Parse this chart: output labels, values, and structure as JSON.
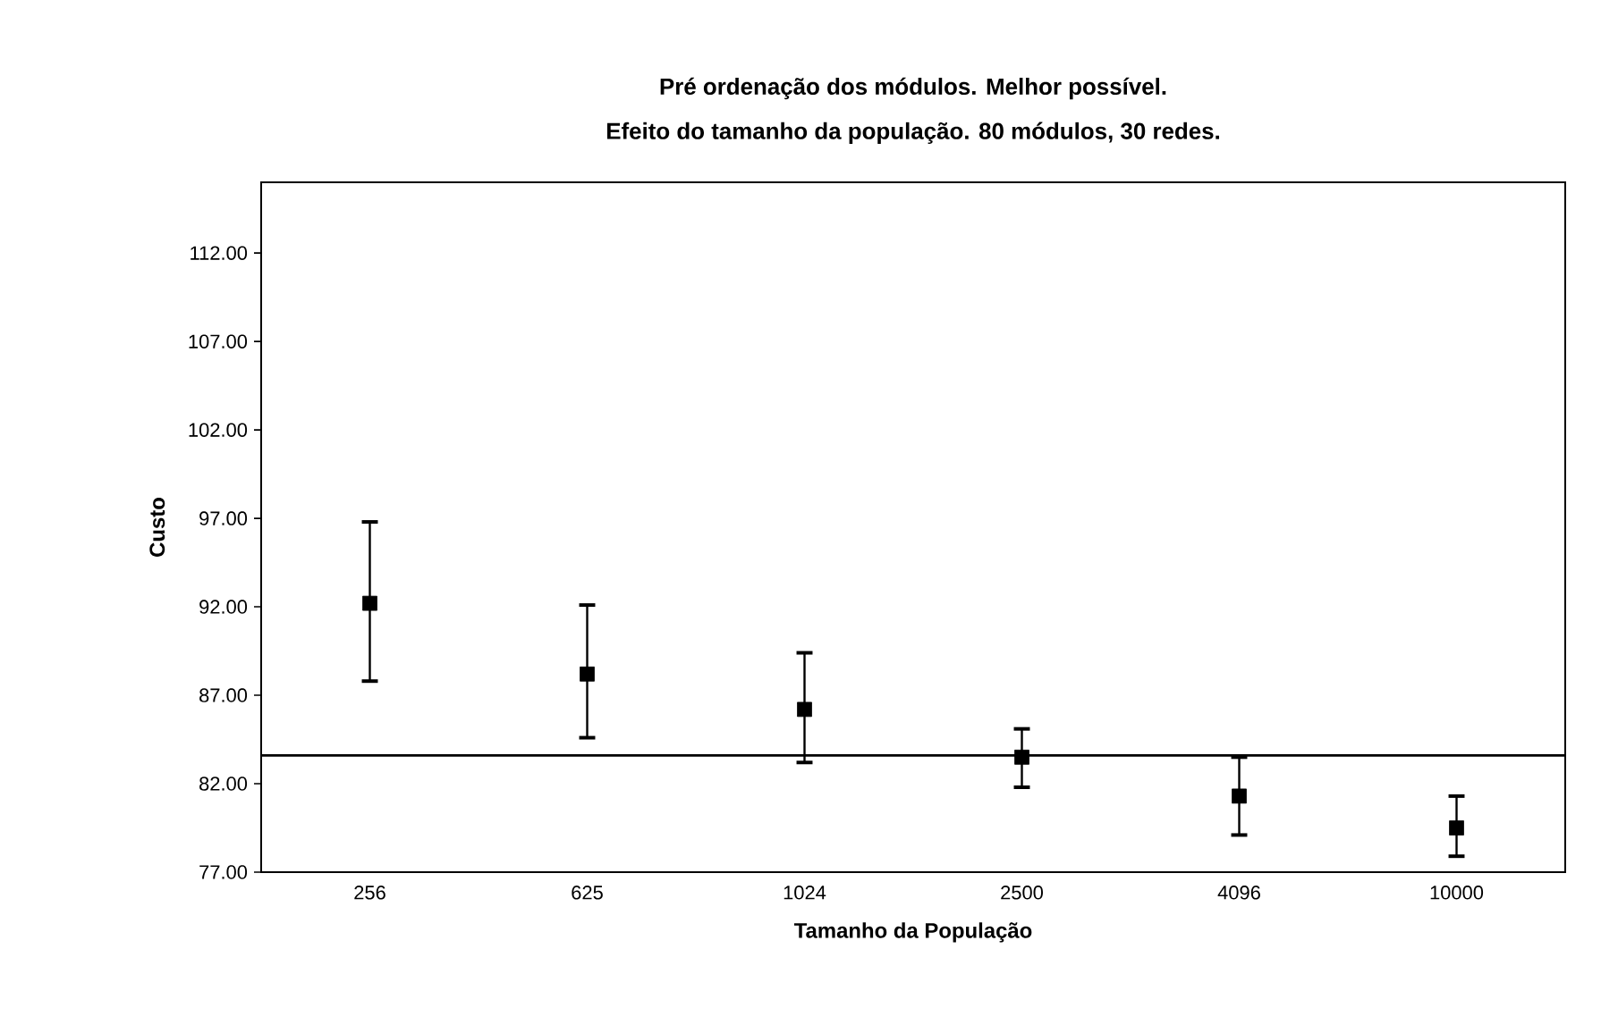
{
  "chart_data": {
    "type": "scatter",
    "title": "Pré ordenação dos módulos. Melhor possível.",
    "subtitle": "Efeito do tamanho da população. 80 módulos, 30 redes.",
    "xlabel": "Tamanho da População",
    "ylabel": "Custo",
    "categories": [
      "256",
      "625",
      "1024",
      "2500",
      "4096",
      "10000"
    ],
    "values": [
      92.2,
      88.2,
      86.2,
      83.5,
      81.3,
      79.5
    ],
    "errors": [
      [
        87.8,
        96.8
      ],
      [
        84.6,
        92.1
      ],
      [
        83.2,
        89.4
      ],
      [
        81.8,
        85.1
      ],
      [
        79.1,
        83.5
      ],
      [
        77.9,
        81.3
      ]
    ],
    "color": "#000000",
    "marker": "square",
    "ylim": [
      77,
      116
    ],
    "yticks": [
      {
        "value": 77,
        "label": "77.00"
      },
      {
        "value": 82,
        "label": "82.00"
      },
      {
        "value": 87,
        "label": "87.00"
      },
      {
        "value": 92,
        "label": "92.00"
      },
      {
        "value": 97,
        "label": "97.00"
      },
      {
        "value": 102,
        "label": "102.00"
      },
      {
        "value": 107,
        "label": "107.00"
      },
      {
        "value": 112,
        "label": "112.00"
      }
    ],
    "ref_lines": [
      {
        "axis": "y",
        "value": 83.6,
        "color": "#000000"
      }
    ]
  }
}
